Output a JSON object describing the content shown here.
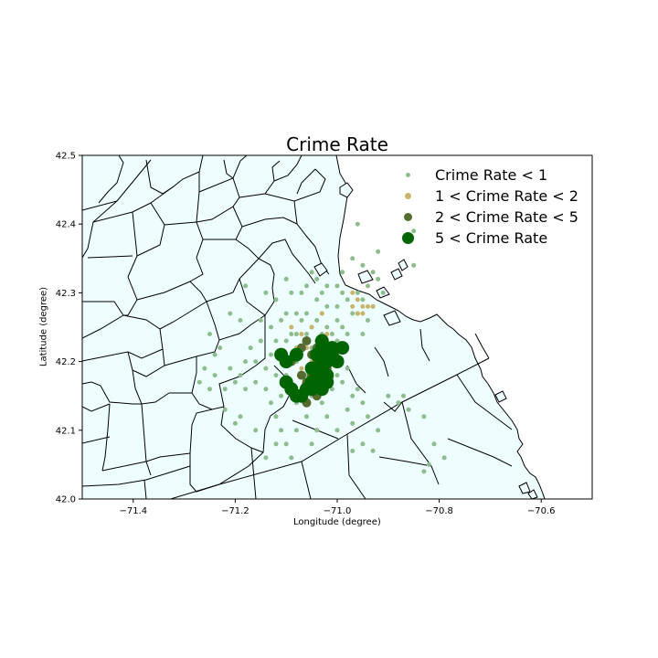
{
  "chart_data": {
    "type": "scatter",
    "title": "Crime Rate",
    "xlabel": "Longitude (degree)",
    "ylabel": "Latitude (degree)",
    "xlim": [
      -71.5,
      -70.5
    ],
    "ylim": [
      42.0,
      42.5
    ],
    "xticks": [
      "−71.4",
      "−71.2",
      "−71.0",
      "−70.8",
      "−70.6"
    ],
    "xtick_values": [
      -71.4,
      -71.2,
      -71.0,
      -70.8,
      -70.6
    ],
    "yticks": [
      "42.0",
      "42.1",
      "42.2",
      "42.3",
      "42.4",
      "42.5"
    ],
    "ytick_values": [
      42.0,
      42.1,
      42.2,
      42.3,
      42.4,
      42.5
    ],
    "background": "town boundary map",
    "map_fill": "#eefefe",
    "map_stroke": "#000000",
    "legend": {
      "position": "top-right"
    },
    "series": [
      {
        "name": "Crime Rate < 1",
        "color": "#8fbc8f",
        "size": "small",
        "points": [
          [
            -71.27,
            42.17
          ],
          [
            -71.26,
            42.19
          ],
          [
            -71.25,
            42.16
          ],
          [
            -71.24,
            42.18
          ],
          [
            -71.24,
            42.21
          ],
          [
            -71.23,
            42.22
          ],
          [
            -71.22,
            42.16
          ],
          [
            -71.21,
            42.19
          ],
          [
            -71.22,
            42.13
          ],
          [
            -71.2,
            42.11
          ],
          [
            -71.2,
            42.17
          ],
          [
            -71.19,
            42.18
          ],
          [
            -71.18,
            42.2
          ],
          [
            -71.18,
            42.16
          ],
          [
            -71.17,
            42.22
          ],
          [
            -71.16,
            42.2
          ],
          [
            -71.16,
            42.17
          ],
          [
            -71.15,
            42.23
          ],
          [
            -71.14,
            42.19
          ],
          [
            -71.14,
            42.16
          ],
          [
            -71.13,
            42.21
          ],
          [
            -71.13,
            42.14
          ],
          [
            -71.12,
            42.12
          ],
          [
            -71.11,
            42.1
          ],
          [
            -71.1,
            42.08
          ],
          [
            -71.1,
            42.18
          ],
          [
            -71.09,
            42.16
          ],
          [
            -71.09,
            42.06
          ],
          [
            -71.08,
            42.14
          ],
          [
            -71.08,
            42.2
          ],
          [
            -71.08,
            42.24
          ],
          [
            -71.07,
            42.22
          ],
          [
            -71.07,
            42.26
          ],
          [
            -71.06,
            42.24
          ],
          [
            -71.06,
            42.27
          ],
          [
            -71.05,
            42.25
          ],
          [
            -71.05,
            42.22
          ],
          [
            -71.04,
            42.29
          ],
          [
            -71.04,
            42.26
          ],
          [
            -71.03,
            42.24
          ],
          [
            -71.03,
            42.27
          ],
          [
            -71.02,
            42.25
          ],
          [
            -71.02,
            42.21
          ],
          [
            -71.01,
            42.24
          ],
          [
            -71.0,
            42.26
          ],
          [
            -71.0,
            42.28
          ],
          [
            -70.99,
            42.25
          ],
          [
            -70.99,
            42.22
          ],
          [
            -70.98,
            42.29
          ],
          [
            -70.98,
            42.24
          ],
          [
            -70.97,
            42.27
          ],
          [
            -70.96,
            42.3
          ],
          [
            -70.95,
            42.29
          ],
          [
            -70.94,
            42.31
          ],
          [
            -70.93,
            42.28
          ],
          [
            -70.92,
            42.32
          ],
          [
            -70.91,
            42.3
          ],
          [
            -70.93,
            42.33
          ],
          [
            -70.95,
            42.34
          ],
          [
            -70.92,
            42.36
          ],
          [
            -70.97,
            42.35
          ],
          [
            -70.96,
            42.4
          ],
          [
            -70.85,
            42.34
          ],
          [
            -70.85,
            42.39
          ],
          [
            -71.06,
            42.12
          ],
          [
            -71.04,
            42.1
          ],
          [
            -71.03,
            42.14
          ],
          [
            -71.02,
            42.12
          ],
          [
            -71.0,
            42.1
          ],
          [
            -70.98,
            42.13
          ],
          [
            -70.97,
            42.11
          ],
          [
            -70.96,
            42.16
          ],
          [
            -70.94,
            42.12
          ],
          [
            -70.92,
            42.1
          ],
          [
            -70.9,
            42.15
          ],
          [
            -70.88,
            42.14
          ],
          [
            -70.87,
            42.15
          ],
          [
            -70.86,
            42.13
          ],
          [
            -70.83,
            42.12
          ],
          [
            -70.82,
            42.05
          ],
          [
            -70.81,
            42.08
          ],
          [
            -70.79,
            42.06
          ],
          [
            -70.83,
            42.04
          ],
          [
            -70.95,
            42.08
          ],
          [
            -70.97,
            42.07
          ],
          [
            -70.93,
            42.07
          ],
          [
            -71.05,
            42.08
          ],
          [
            -71.08,
            42.1
          ],
          [
            -71.12,
            42.08
          ],
          [
            -71.14,
            42.06
          ],
          [
            -71.16,
            42.1
          ],
          [
            -71.19,
            42.12
          ],
          [
            -71.25,
            42.24
          ],
          [
            -71.21,
            42.27
          ],
          [
            -71.19,
            42.26
          ],
          [
            -71.18,
            42.31
          ],
          [
            -71.15,
            42.26
          ],
          [
            -71.14,
            42.3
          ],
          [
            -71.12,
            42.29
          ],
          [
            -71.1,
            42.32
          ],
          [
            -71.09,
            42.3
          ],
          [
            -71.11,
            42.26
          ],
          [
            -71.13,
            42.25
          ],
          [
            -70.99,
            42.3
          ],
          [
            -70.99,
            42.33
          ],
          [
            -71.0,
            42.31
          ],
          [
            -71.02,
            42.31
          ],
          [
            -71.03,
            42.3
          ],
          [
            -71.04,
            42.32
          ],
          [
            -71.05,
            42.33
          ],
          [
            -71.06,
            42.31
          ],
          [
            -71.07,
            42.3
          ],
          [
            -71.08,
            42.27
          ],
          [
            -71.09,
            42.24
          ],
          [
            -71.1,
            42.23
          ],
          [
            -71.11,
            42.21
          ],
          [
            -71.12,
            42.23
          ],
          [
            -71.12,
            42.18
          ],
          [
            -71.11,
            42.15
          ],
          [
            -71.06,
            42.18
          ],
          [
            -71.05,
            42.15
          ],
          [
            -71.04,
            42.17
          ],
          [
            -71.01,
            42.16
          ],
          [
            -71.0,
            42.18
          ],
          [
            -70.99,
            42.17
          ],
          [
            -70.98,
            42.19
          ],
          [
            -70.97,
            42.15
          ],
          [
            -70.95,
            42.14
          ],
          [
            -71.1,
            42.27
          ],
          [
            -71.03,
            42.19
          ],
          [
            -70.96,
            42.27
          ],
          [
            -70.94,
            42.26
          ],
          [
            -70.95,
            42.24
          ],
          [
            -71.02,
            42.28
          ],
          [
            -71.0,
            42.23
          ],
          [
            -71.07,
            42.16
          ]
        ]
      },
      {
        "name": "1 < Crime Rate < 2",
        "color": "#c8b46a",
        "size": "small",
        "points": [
          [
            -70.97,
            42.3
          ],
          [
            -70.96,
            42.29
          ],
          [
            -70.95,
            42.28
          ],
          [
            -70.96,
            42.27
          ],
          [
            -70.94,
            42.28
          ],
          [
            -70.97,
            42.28
          ],
          [
            -70.95,
            42.27
          ],
          [
            -70.93,
            42.28
          ],
          [
            -71.03,
            42.27
          ],
          [
            -71.05,
            42.25
          ],
          [
            -71.07,
            42.24
          ],
          [
            -71.09,
            42.25
          ],
          [
            -71.04,
            42.23
          ],
          [
            -71.06,
            42.22
          ],
          [
            -71.08,
            42.22
          ],
          [
            -71.02,
            42.24
          ],
          [
            -71.05,
            42.2
          ],
          [
            -71.07,
            42.19
          ]
        ]
      },
      {
        "name": "2 < Crime Rate < 5",
        "color": "#556b2f",
        "size": "medium",
        "points": [
          [
            -71.06,
            42.23
          ],
          [
            -71.07,
            42.22
          ],
          [
            -71.05,
            42.21
          ],
          [
            -71.04,
            42.2
          ],
          [
            -71.08,
            42.21
          ],
          [
            -71.07,
            42.18
          ],
          [
            -71.06,
            42.17
          ],
          [
            -71.05,
            42.16
          ],
          [
            -71.04,
            42.15
          ],
          [
            -71.03,
            42.17
          ],
          [
            -71.06,
            42.14
          ],
          [
            -71.07,
            42.15
          ],
          [
            -71.04,
            42.22
          ],
          [
            -71.09,
            42.2
          ],
          [
            -71.02,
            42.19
          ],
          [
            -71.05,
            42.18
          ]
        ]
      },
      {
        "name": "5 < Crime Rate",
        "color": "#006400",
        "size": "large",
        "points": [
          [
            -71.03,
            42.22
          ],
          [
            -71.01,
            42.22
          ],
          [
            -70.99,
            42.22
          ],
          [
            -71.02,
            42.21
          ],
          [
            -71.0,
            42.2
          ],
          [
            -71.04,
            42.21
          ],
          [
            -71.03,
            42.2
          ],
          [
            -71.02,
            42.2
          ],
          [
            -71.01,
            42.21
          ],
          [
            -71.04,
            42.19
          ],
          [
            -71.03,
            42.19
          ],
          [
            -71.02,
            42.18
          ],
          [
            -71.04,
            42.18
          ],
          [
            -71.05,
            42.19
          ],
          [
            -71.05,
            42.17
          ],
          [
            -71.04,
            42.17
          ],
          [
            -71.03,
            42.17
          ],
          [
            -71.02,
            42.17
          ],
          [
            -71.05,
            42.16
          ],
          [
            -71.03,
            42.16
          ],
          [
            -71.06,
            42.16
          ],
          [
            -71.1,
            42.2
          ],
          [
            -71.11,
            42.21
          ],
          [
            -71.08,
            42.21
          ],
          [
            -71.1,
            42.17
          ],
          [
            -71.09,
            42.16
          ],
          [
            -71.08,
            42.15
          ],
          [
            -71.07,
            42.15
          ],
          [
            -71.03,
            42.23
          ],
          [
            -71.0,
            42.2
          ]
        ]
      }
    ]
  }
}
